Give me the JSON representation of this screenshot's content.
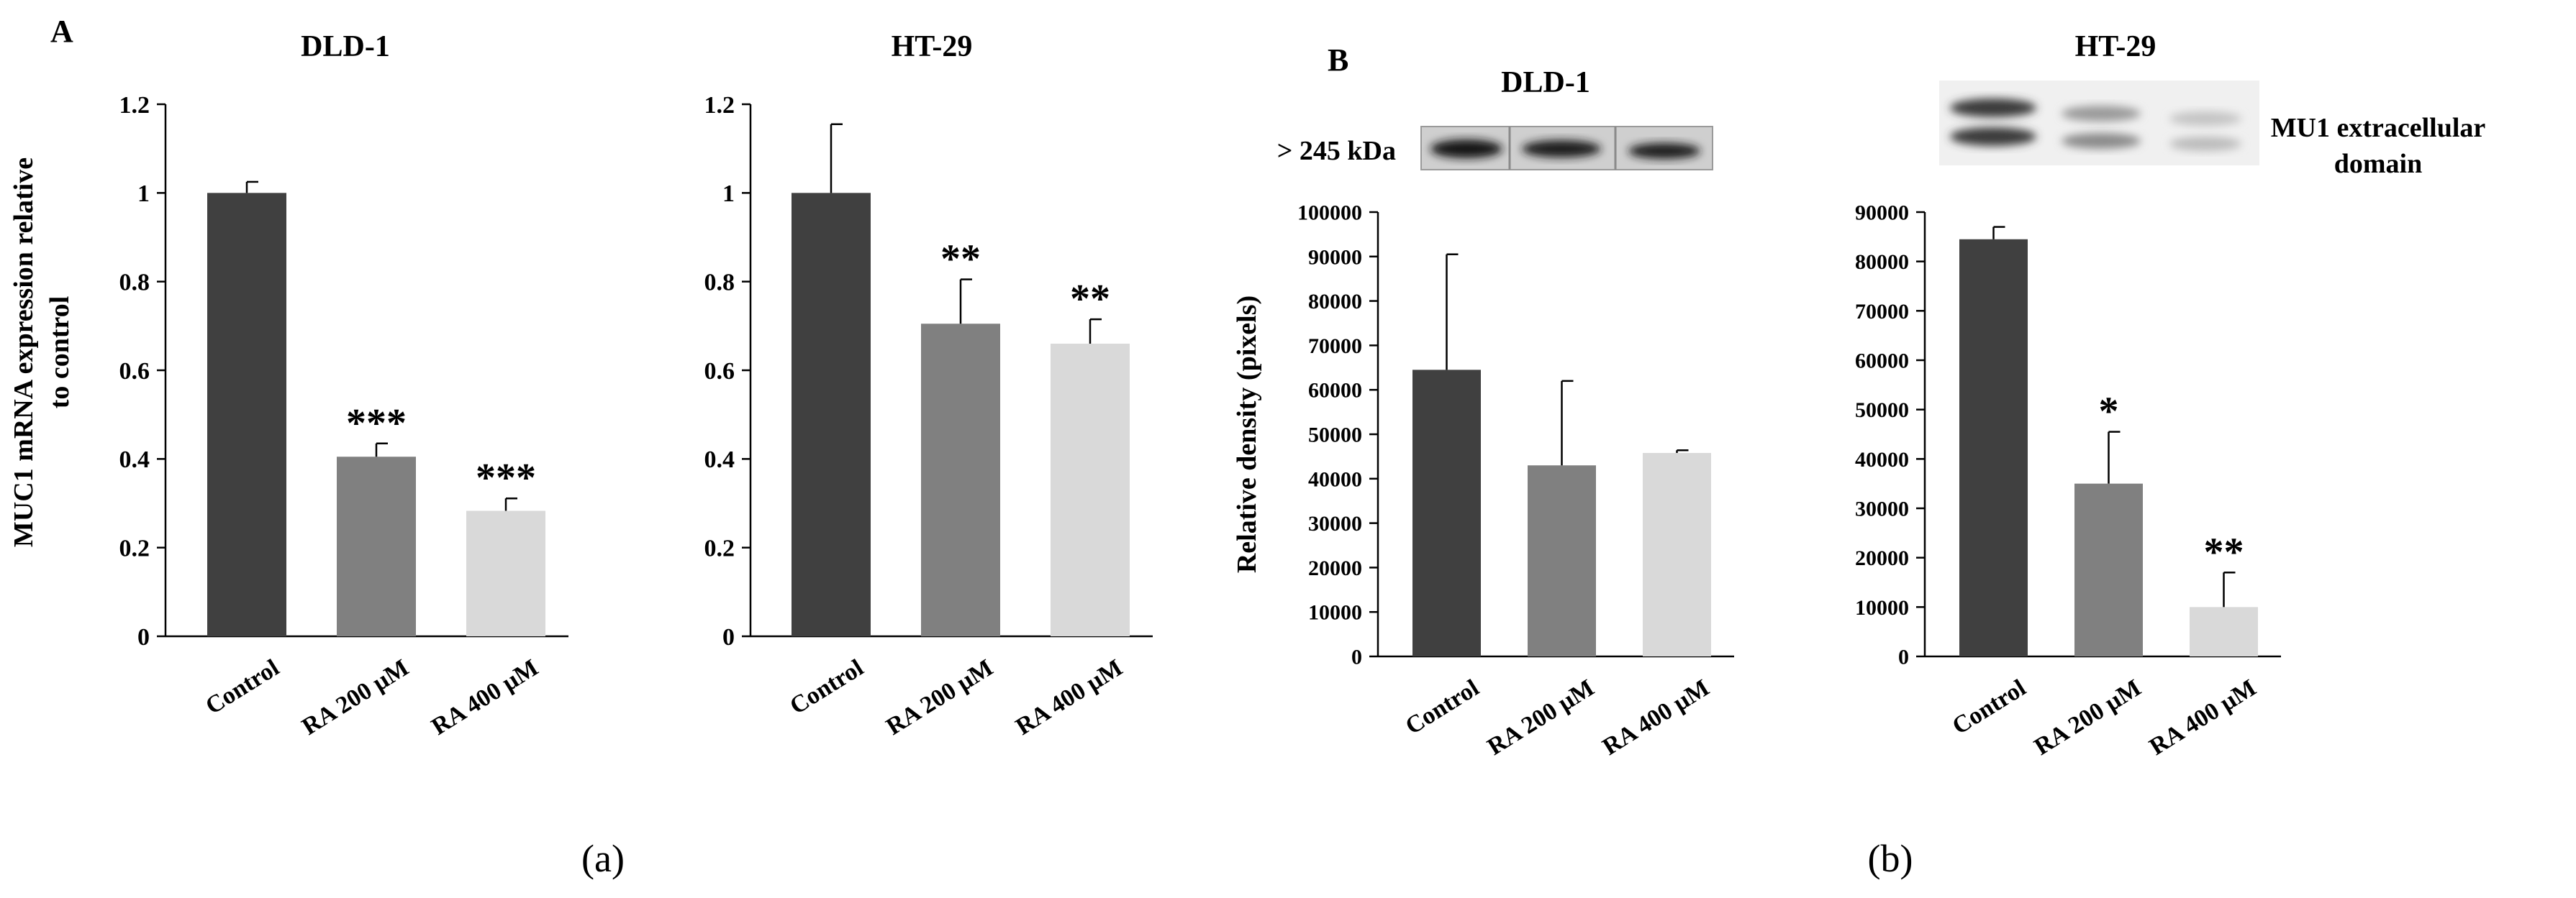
{
  "panel_labels": {
    "A": "A",
    "B": "B"
  },
  "captions": {
    "a": "(a)",
    "b": "(b)"
  },
  "blot": {
    "marker": "> 245 kDa",
    "protein_line1": "MU1 extracellular",
    "protein_line2": "domain"
  },
  "colors": {
    "control": "#404040",
    "ra200": "#808080",
    "ra400": "#d9d9d9",
    "axis": "#000000"
  },
  "chart_data": [
    {
      "type": "bar",
      "title": "DLD-1",
      "ylabel_lines": [
        "MUC1 mRNA expression relative",
        "to control"
      ],
      "categories": [
        "Control",
        "RA 200 µM",
        "RA 400 µM"
      ],
      "values": [
        1.0,
        0.405,
        0.283
      ],
      "errors": [
        0.025,
        0.03,
        0.028
      ],
      "significance": [
        "",
        "***",
        "***"
      ],
      "ylim": [
        0,
        1.2
      ],
      "yticks": [
        "0",
        "0.2",
        "0.4",
        "0.6",
        "0.8",
        "1",
        "1.2"
      ]
    },
    {
      "type": "bar",
      "title": "HT-29",
      "ylabel_lines": [],
      "categories": [
        "Control",
        "RA 200 µM",
        "RA 400 µM"
      ],
      "values": [
        1.0,
        0.705,
        0.66
      ],
      "errors": [
        0.155,
        0.1,
        0.055
      ],
      "significance": [
        "",
        "**",
        "**"
      ],
      "ylim": [
        0,
        1.2
      ],
      "yticks": [
        "0",
        "0.2",
        "0.4",
        "0.6",
        "0.8",
        "1",
        "1.2"
      ]
    },
    {
      "type": "bar",
      "title": "DLD-1",
      "ylabel_lines": [
        "Relative density (pixels)"
      ],
      "categories": [
        "Control",
        "RA 200 µM",
        "RA 400 µM"
      ],
      "values": [
        64500,
        43000,
        45800
      ],
      "errors": [
        26000,
        19000,
        600
      ],
      "significance": [
        "",
        "",
        ""
      ],
      "ylim": [
        0,
        100000
      ],
      "yticks": [
        "0",
        "10000",
        "20000",
        "30000",
        "40000",
        "50000",
        "60000",
        "70000",
        "80000",
        "90000",
        "100000"
      ]
    },
    {
      "type": "bar",
      "title": "HT-29",
      "ylabel_lines": [],
      "categories": [
        "Control",
        "RA 200 µM",
        "RA 400 µM"
      ],
      "values": [
        84500,
        35000,
        10000
      ],
      "errors": [
        2500,
        10500,
        7000
      ],
      "significance": [
        "",
        "*",
        "**"
      ],
      "ylim": [
        0,
        90000
      ],
      "yticks": [
        "0",
        "10000",
        "20000",
        "30000",
        "40000",
        "50000",
        "60000",
        "70000",
        "80000",
        "90000"
      ]
    }
  ]
}
